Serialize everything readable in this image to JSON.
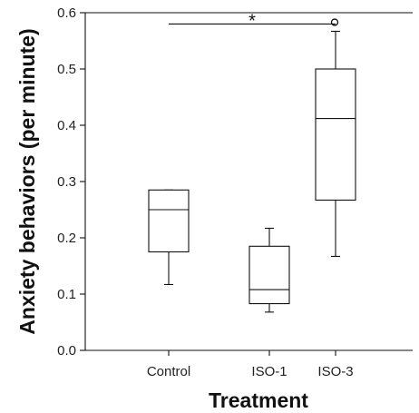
{
  "chart_data": {
    "type": "box",
    "xlabel": "Treatment",
    "ylabel": "Anxiety behaviors (per minute)",
    "ylim": [
      0.0,
      0.6
    ],
    "yticks": [
      "0.0",
      "0.1",
      "0.2",
      "0.3",
      "0.4",
      "0.5",
      "0.6"
    ],
    "categories": [
      "Control",
      "ISO-1",
      "ISO-3"
    ],
    "boxes": [
      {
        "name": "Control",
        "min": 0.117,
        "q1": 0.175,
        "median": 0.25,
        "q3": 0.285,
        "max": 0.285,
        "outliers": []
      },
      {
        "name": "ISO-1",
        "min": 0.068,
        "q1": 0.083,
        "median": 0.108,
        "q3": 0.185,
        "max": 0.217,
        "outliers": []
      },
      {
        "name": "ISO-3",
        "min": 0.167,
        "q1": 0.267,
        "median": 0.412,
        "q3": 0.5,
        "max": 0.567,
        "outliers": [
          0.583
        ]
      }
    ],
    "significance": {
      "from": "Control",
      "to": "ISO-3",
      "y": 0.58,
      "label": "*"
    },
    "grid": false
  }
}
